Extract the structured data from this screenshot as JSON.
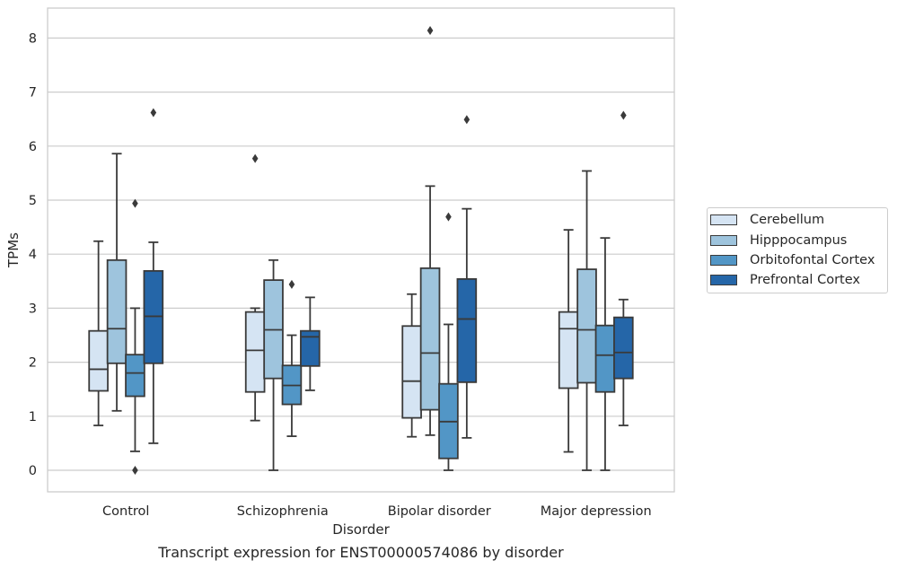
{
  "chart_data": {
    "type": "box",
    "title": "",
    "xlabel": "Disorder",
    "ylabel": "TPMs",
    "ylim": [
      -0.4,
      8.55
    ],
    "yticks": [
      0,
      1,
      2,
      3,
      4,
      5,
      6,
      7,
      8
    ],
    "grid": true,
    "legend_position": "right",
    "categories": [
      "Control",
      "Schizophrenia",
      "Bipolar disorder",
      "Major depression"
    ],
    "series": [
      {
        "name": "Cerebellum",
        "color": "#d5e4f3",
        "boxes": [
          {
            "whisker_low": 0.83,
            "q1": 1.47,
            "median": 1.87,
            "q3": 2.58,
            "whisker_high": 4.24,
            "outliers": []
          },
          {
            "whisker_low": 0.92,
            "q1": 1.45,
            "median": 2.22,
            "q3": 2.93,
            "whisker_high": 3.0,
            "outliers": [
              5.77
            ]
          },
          {
            "whisker_low": 0.62,
            "q1": 0.97,
            "median": 1.65,
            "q3": 2.67,
            "whisker_high": 3.26,
            "outliers": []
          },
          {
            "whisker_low": 0.34,
            "q1": 1.52,
            "median": 2.62,
            "q3": 2.93,
            "whisker_high": 4.45,
            "outliers": []
          }
        ]
      },
      {
        "name": "Hipppocampus",
        "color": "#9ec4dd",
        "boxes": [
          {
            "whisker_low": 1.1,
            "q1": 1.98,
            "median": 2.62,
            "q3": 3.89,
            "whisker_high": 5.86,
            "outliers": []
          },
          {
            "whisker_low": 0.0,
            "q1": 1.7,
            "median": 2.6,
            "q3": 3.52,
            "whisker_high": 3.89,
            "outliers": []
          },
          {
            "whisker_low": 0.65,
            "q1": 1.12,
            "median": 2.17,
            "q3": 3.74,
            "whisker_high": 5.26,
            "outliers": [
              8.14
            ]
          },
          {
            "whisker_low": 0.0,
            "q1": 1.62,
            "median": 2.6,
            "q3": 3.72,
            "whisker_high": 5.54,
            "outliers": []
          }
        ]
      },
      {
        "name": "Orbitofontal Cortex",
        "color": "#5296c6",
        "boxes": [
          {
            "whisker_low": 0.35,
            "q1": 1.37,
            "median": 1.8,
            "q3": 2.14,
            "whisker_high": 3.0,
            "outliers": [
              4.94,
              0.0
            ]
          },
          {
            "whisker_low": 0.63,
            "q1": 1.22,
            "median": 1.57,
            "q3": 1.94,
            "whisker_high": 2.5,
            "outliers": [
              3.44
            ]
          },
          {
            "whisker_low": 0.0,
            "q1": 0.22,
            "median": 0.9,
            "q3": 1.6,
            "whisker_high": 2.7,
            "outliers": [
              4.69
            ]
          },
          {
            "whisker_low": 0.0,
            "q1": 1.45,
            "median": 2.13,
            "q3": 2.68,
            "whisker_high": 4.3,
            "outliers": []
          }
        ]
      },
      {
        "name": "Prefrontal Cortex",
        "color": "#2566a8",
        "boxes": [
          {
            "whisker_low": 0.5,
            "q1": 1.98,
            "median": 2.85,
            "q3": 3.69,
            "whisker_high": 4.22,
            "outliers": [
              6.62
            ]
          },
          {
            "whisker_low": 1.48,
            "q1": 1.93,
            "median": 2.47,
            "q3": 2.58,
            "whisker_high": 3.2,
            "outliers": []
          },
          {
            "whisker_low": 0.6,
            "q1": 1.63,
            "median": 2.8,
            "q3": 3.54,
            "whisker_high": 4.84,
            "outliers": [
              6.49
            ]
          },
          {
            "whisker_low": 0.83,
            "q1": 1.7,
            "median": 2.18,
            "q3": 2.83,
            "whisker_high": 3.16,
            "outliers": [
              6.57
            ]
          }
        ]
      }
    ]
  },
  "caption": "Transcript expression for ENST00000574086 by disorder"
}
